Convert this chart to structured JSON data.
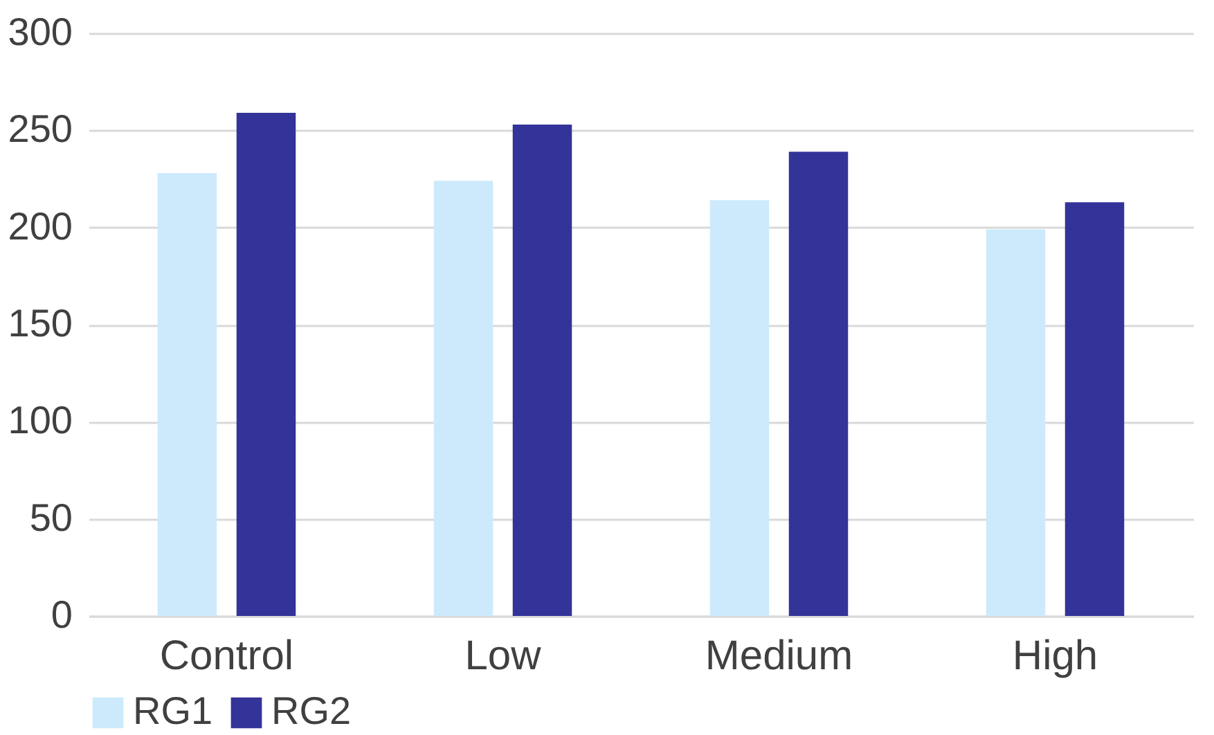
{
  "chart_data": {
    "type": "bar",
    "categories": [
      "Control",
      "Low",
      "Medium",
      "High"
    ],
    "series": [
      {
        "name": "RG1",
        "color": "#cdeafc",
        "values": [
          228,
          224,
          214,
          199
        ]
      },
      {
        "name": "RG2",
        "color": "#333399",
        "values": [
          259,
          253,
          239,
          213
        ]
      }
    ],
    "ylim": [
      0,
      300
    ],
    "yticks": [
      0,
      50,
      100,
      150,
      200,
      250,
      300
    ],
    "grid": "y",
    "legend": "bottom"
  }
}
